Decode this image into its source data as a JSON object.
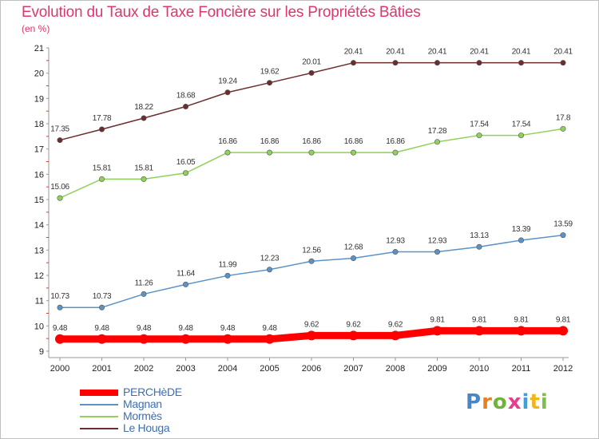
{
  "header": {
    "title": "Evolution du Taux de Taxe Foncière sur les Propriétés Bâties",
    "subtitle": "(en %)"
  },
  "logo": {
    "text": "Proxiti",
    "colors": [
      "#4a86c5",
      "#e8801f",
      "#6fb33d",
      "#e33f8e",
      "#3fa0d8",
      "#f0b41c",
      "#7cc04a"
    ]
  },
  "chart_data": {
    "type": "line",
    "x": [
      "2000",
      "2001",
      "2002",
      "2003",
      "2004",
      "2005",
      "2006",
      "2007",
      "2008",
      "2009",
      "2010",
      "2011",
      "2012"
    ],
    "ylim": [
      9,
      21
    ],
    "yticks": [
      9,
      10,
      11,
      12,
      13,
      14,
      15,
      16,
      17,
      18,
      19,
      20,
      21
    ],
    "grid": false,
    "legend_position": "bottom-left",
    "series": [
      {
        "name": "PERCHèDE",
        "color": "#ff0000",
        "emphasis": true,
        "values": [
          9.48,
          9.48,
          9.48,
          9.48,
          9.48,
          9.48,
          9.62,
          9.62,
          9.62,
          9.81,
          9.81,
          9.81,
          9.81
        ],
        "labels": [
          "9.48",
          "9.48",
          "9.48",
          "9.48",
          "9.48",
          "9.48",
          "9.62",
          "9.62",
          "9.62",
          "9.81",
          "9.81",
          "9.81",
          "9.81"
        ]
      },
      {
        "name": "Magnan",
        "color": "#5b93c7",
        "emphasis": false,
        "values": [
          10.73,
          10.73,
          11.26,
          11.64,
          11.99,
          12.23,
          12.56,
          12.68,
          12.93,
          12.93,
          13.13,
          13.39,
          13.59
        ],
        "labels": [
          "10.73",
          "10.73",
          "11.26",
          "11.64",
          "11.99",
          "12.23",
          "12.56",
          "12.68",
          "12.93",
          "12.93",
          "13.13",
          "13.39",
          "13.59"
        ]
      },
      {
        "name": "Mormès",
        "color": "#8fd15a",
        "emphasis": false,
        "values": [
          15.06,
          15.81,
          15.81,
          16.05,
          16.86,
          16.86,
          16.86,
          16.86,
          16.86,
          17.28,
          17.54,
          17.54,
          17.8
        ],
        "labels": [
          "15.06",
          "15.81",
          "15.81",
          "16.05",
          "16.86",
          "16.86",
          "16.86",
          "16.86",
          "16.86",
          "17.28",
          "17.54",
          "17.54",
          "17.8"
        ]
      },
      {
        "name": "Le Houga",
        "color": "#6b2d2d",
        "emphasis": false,
        "values": [
          17.35,
          17.78,
          18.22,
          18.68,
          19.24,
          19.62,
          20.01,
          20.41,
          20.41,
          20.41,
          20.41,
          20.41,
          20.41
        ],
        "labels": [
          "17.35",
          "17.78",
          "18.22",
          "18.68",
          "19.24",
          "19.62",
          "20.01",
          "20.41",
          "20.41",
          "20.41",
          "20.41",
          "20.41",
          "20.41"
        ]
      }
    ]
  }
}
